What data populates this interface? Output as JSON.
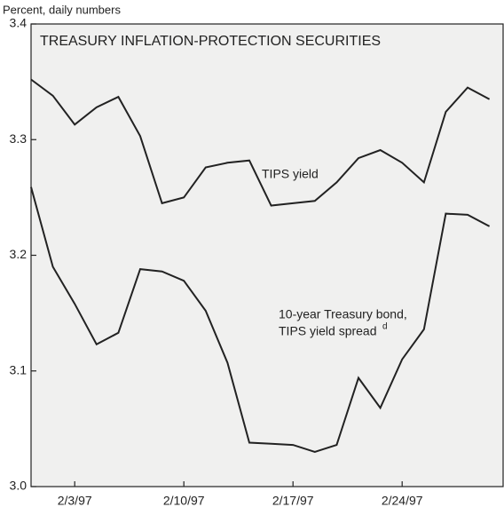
{
  "chart_data": {
    "type": "line",
    "title": "TREASURY INFLATION-PROTECTION SECURITIES",
    "y_label": "Percent, daily numbers",
    "categories": [
      null,
      null,
      "2/3/97",
      null,
      null,
      null,
      null,
      "2/10/97",
      null,
      null,
      null,
      null,
      "2/17/97",
      null,
      null,
      null,
      null,
      "2/24/97",
      null,
      null,
      null,
      null
    ],
    "series": [
      {
        "name": "TIPS yield",
        "color": "#222222",
        "values": [
          3.352,
          3.338,
          3.313,
          3.328,
          3.337,
          3.303,
          3.245,
          3.25,
          3.276,
          3.28,
          3.282,
          3.243,
          3.245,
          3.247,
          3.263,
          3.284,
          3.291,
          3.28,
          3.263,
          3.324,
          3.345,
          3.335
        ]
      },
      {
        "name": "10-year Treasury bond, TIPS yield spread",
        "color": "#222222",
        "values": [
          3.259,
          3.19,
          3.158,
          3.123,
          3.133,
          3.188,
          3.186,
          3.178,
          3.152,
          3.107,
          3.038,
          3.037,
          3.036,
          3.03,
          3.036,
          3.094,
          3.068,
          3.11,
          3.136,
          3.236,
          3.235,
          3.225
        ]
      }
    ],
    "annotations": [
      "TIPS yield",
      "10-year Treasury bond,",
      "TIPS yield spread",
      "d"
    ],
    "ylim": [
      3.0,
      3.4
    ],
    "yticks": [
      {
        "value": 3.0,
        "label": "3.0"
      },
      3.1,
      3.2,
      3.3,
      3.4
    ]
  }
}
